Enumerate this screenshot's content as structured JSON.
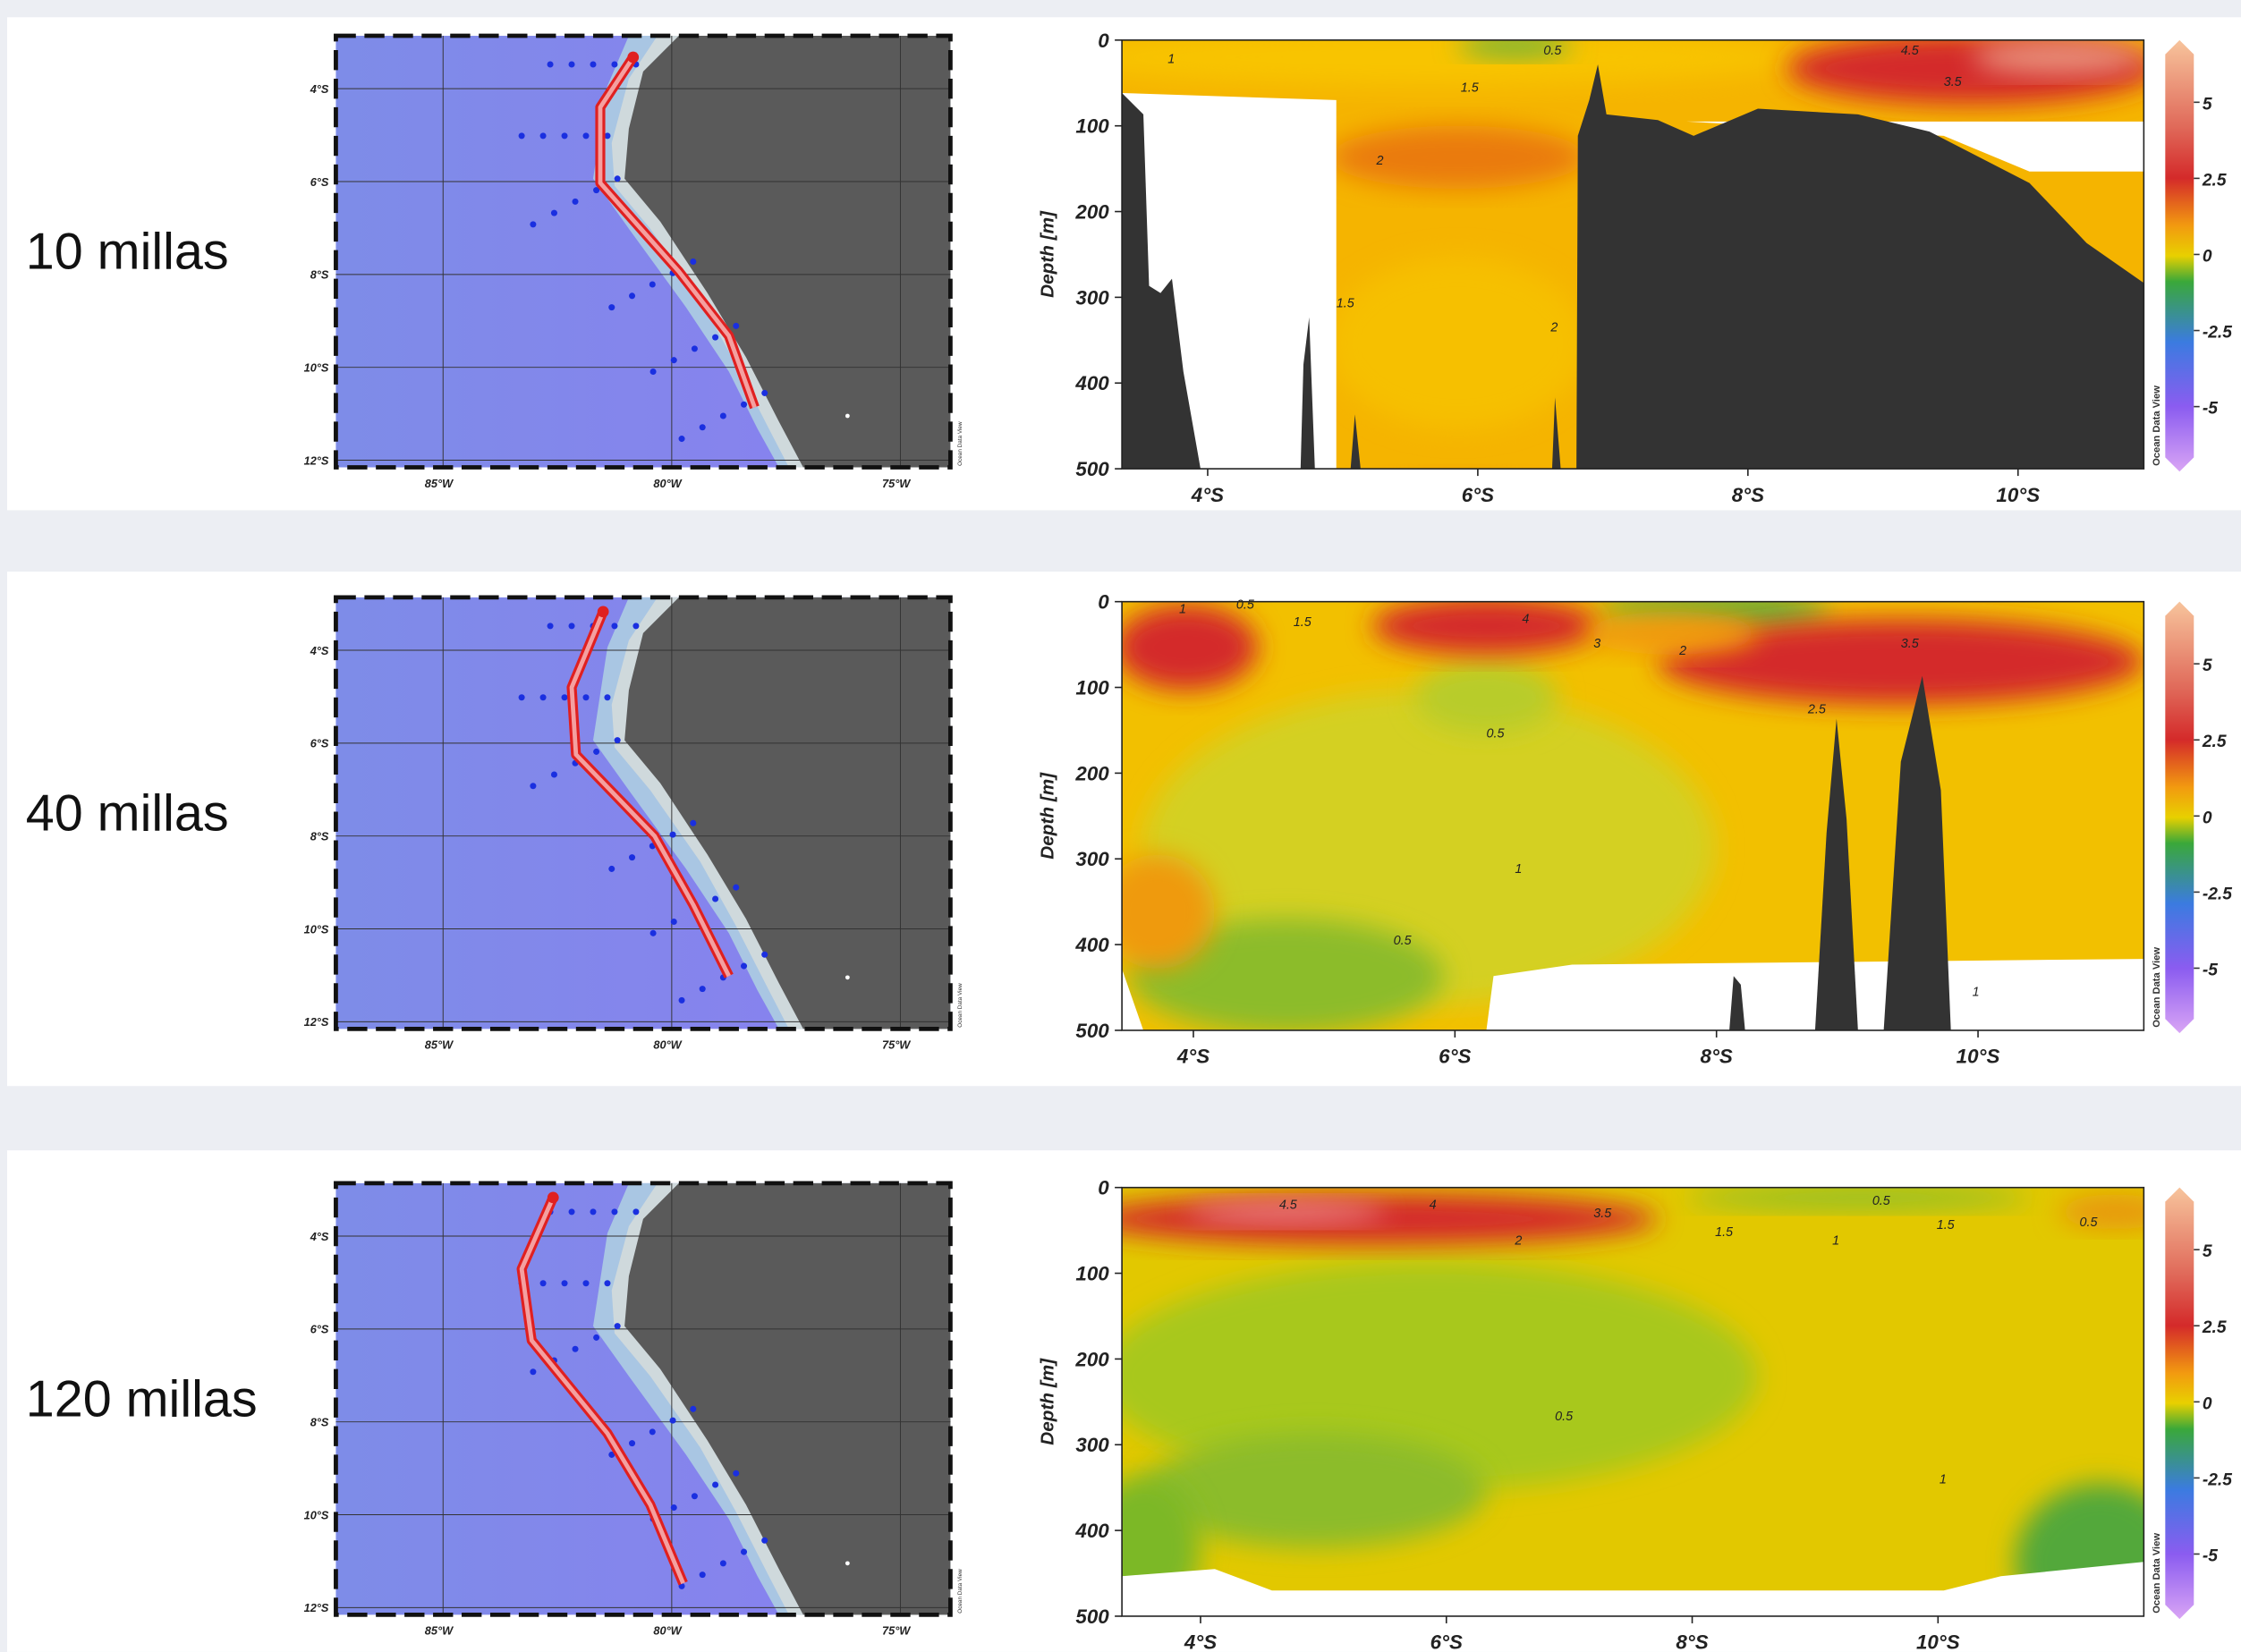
{
  "rows": [
    {
      "label": "10 millas",
      "map": {
        "lat_labels": [
          {
            "value": 4,
            "label": "4°S"
          },
          {
            "value": 6,
            "label": "6°S"
          },
          {
            "value": 8,
            "label": "8°S"
          },
          {
            "value": 10,
            "label": "10°S"
          },
          {
            "value": 12,
            "label": "12°S"
          }
        ],
        "lon_labels": [
          {
            "value": 85,
            "label": "85°W"
          },
          {
            "value": 80,
            "label": "80°W"
          },
          {
            "value": 75,
            "label": "75°W"
          }
        ]
      },
      "section": {
        "y_label": "Depth [m]",
        "yticks": [
          0,
          100,
          200,
          300,
          400,
          500
        ],
        "xticks": [
          {
            "value": 4,
            "label": "4°S"
          },
          {
            "value": 6,
            "label": "6°S"
          },
          {
            "value": 8,
            "label": "8°S"
          },
          {
            "value": 10,
            "label": "10°S"
          }
        ],
        "contour_labels": [
          1,
          0.5,
          1.5,
          2,
          2,
          1.5,
          4.5,
          3.5
        ],
        "watermark": "Ocean Data View"
      },
      "colorbar": {
        "ticks": [
          5,
          2.5,
          0,
          -2.5,
          -5
        ]
      }
    },
    {
      "label": "40 millas",
      "map": {
        "lat_labels": [
          {
            "value": 4,
            "label": "4°S"
          },
          {
            "value": 6,
            "label": "6°S"
          },
          {
            "value": 8,
            "label": "8°S"
          },
          {
            "value": 10,
            "label": "10°S"
          },
          {
            "value": 12,
            "label": "12°S"
          }
        ],
        "lon_labels": [
          {
            "value": 85,
            "label": "85°W"
          },
          {
            "value": 80,
            "label": "80°W"
          },
          {
            "value": 75,
            "label": "75°W"
          }
        ]
      },
      "section": {
        "y_label": "Depth [m]",
        "yticks": [
          0,
          100,
          200,
          300,
          400,
          500
        ],
        "xticks": [
          {
            "value": 4,
            "label": "4°S"
          },
          {
            "value": 6,
            "label": "6°S"
          },
          {
            "value": 8,
            "label": "8°S"
          },
          {
            "value": 10,
            "label": "10°S"
          }
        ],
        "contour_labels": [
          1,
          0.5,
          1.5,
          4,
          3,
          2,
          3.5,
          2.5,
          0.5,
          1,
          0.5,
          1
        ],
        "watermark": "Ocean Data View"
      },
      "colorbar": {
        "ticks": [
          5,
          2.5,
          0,
          -2.5,
          -5
        ]
      }
    },
    {
      "label": "120 millas",
      "map": {
        "lat_labels": [
          {
            "value": 4,
            "label": "4°S"
          },
          {
            "value": 6,
            "label": "6°S"
          },
          {
            "value": 8,
            "label": "8°S"
          },
          {
            "value": 10,
            "label": "10°S"
          },
          {
            "value": 12,
            "label": "12°S"
          }
        ],
        "lon_labels": [
          {
            "value": 85,
            "label": "85°W"
          },
          {
            "value": 80,
            "label": "80°W"
          },
          {
            "value": 75,
            "label": "75°W"
          }
        ]
      },
      "section": {
        "y_label": "Depth [m]",
        "yticks": [
          0,
          100,
          200,
          300,
          400,
          500
        ],
        "xticks": [
          {
            "value": 4,
            "label": "4°S"
          },
          {
            "value": 6,
            "label": "6°S"
          },
          {
            "value": 8,
            "label": "8°S"
          },
          {
            "value": 10,
            "label": "10°S"
          }
        ],
        "contour_labels": [
          4.5,
          4,
          3.5,
          2,
          1.5,
          1,
          0.5,
          1.5,
          0.5,
          1,
          0.5
        ],
        "watermark": "Ocean Data View"
      },
      "colorbar": {
        "ticks": [
          5,
          2.5,
          0,
          -2.5,
          -5
        ]
      }
    }
  ]
}
